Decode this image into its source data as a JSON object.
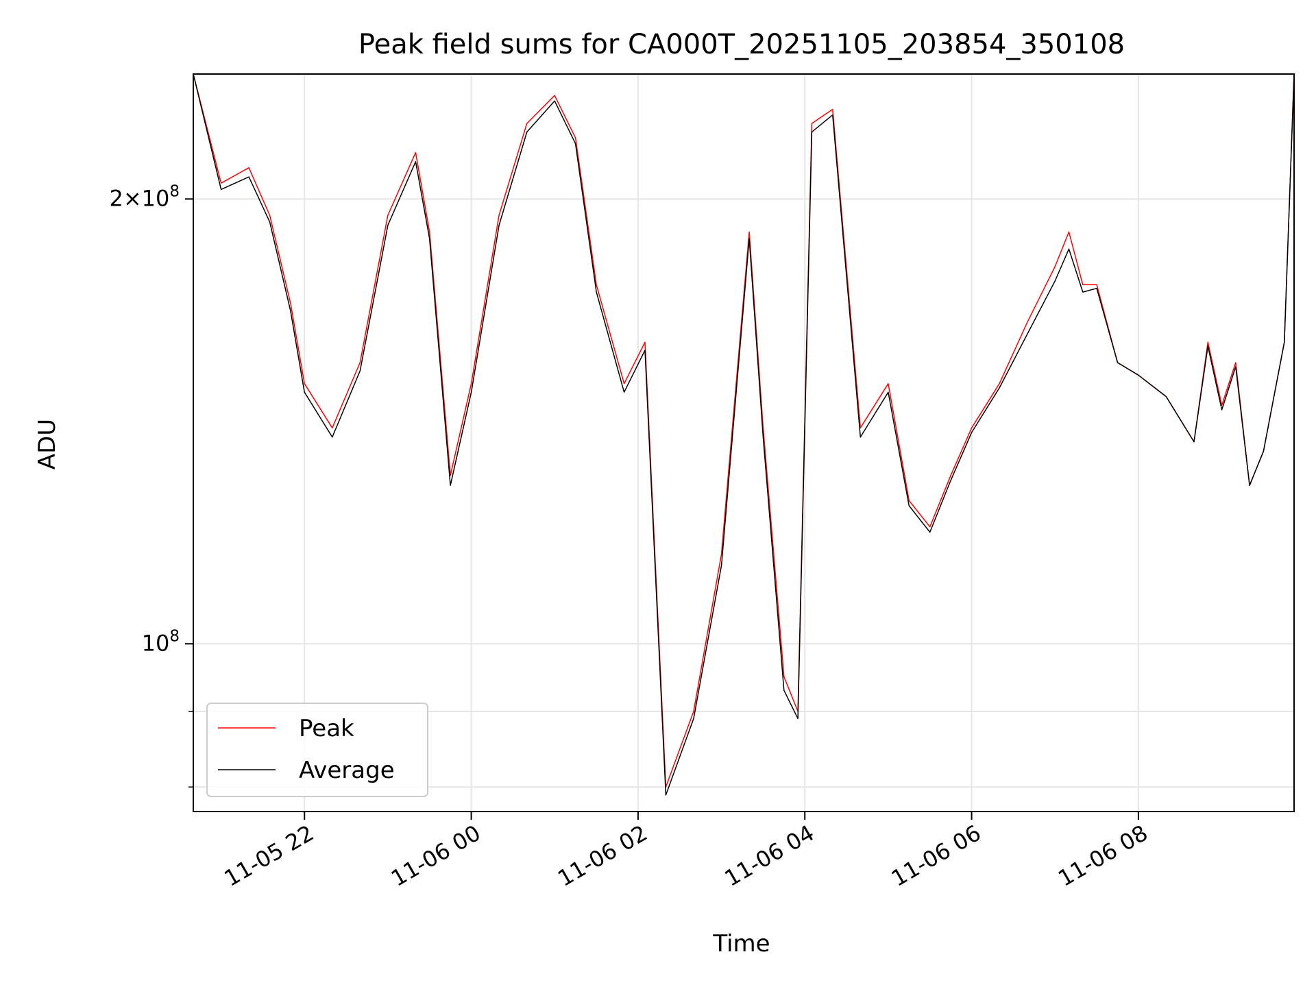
{
  "chart_data": {
    "type": "line",
    "title": "Peak field sums for CA000T_20251105_203854_350108",
    "xlabel": "Time",
    "ylabel": "ADU",
    "x_axis": {
      "kind": "time",
      "range": [
        "2025-11-05 20:40",
        "2025-11-06 09:52"
      ],
      "ticks": [
        "2025-11-05 22:00",
        "2025-11-06 00:00",
        "2025-11-06 02:00",
        "2025-11-06 04:00",
        "2025-11-06 06:00",
        "2025-11-06 08:00"
      ],
      "tick_labels": [
        "11-05 22",
        "11-06 00",
        "11-06 02",
        "11-06 04",
        "11-06 06",
        "11-06 08"
      ]
    },
    "y_axis": {
      "scale": "log",
      "range": [
        77000000,
        243000000
      ],
      "major_ticks": [
        100000000,
        200000000
      ],
      "major_tick_labels": [
        "10^8",
        "2×10^8"
      ],
      "minor_ticks": [
        80000000,
        90000000
      ]
    },
    "grid": true,
    "legend": {
      "placement": "lower-left",
      "entries": [
        "Peak",
        "Average"
      ]
    },
    "colors": {
      "Peak": "#ff0000",
      "Average": "#000000"
    },
    "series": [
      {
        "name": "Peak",
        "x": [
          "2025-11-05 20:40",
          "2025-11-05 21:00",
          "2025-11-05 21:20",
          "2025-11-05 21:35",
          "2025-11-05 21:50",
          "2025-11-05 22:00",
          "2025-11-05 22:20",
          "2025-11-05 22:40",
          "2025-11-05 23:00",
          "2025-11-05 23:20",
          "2025-11-05 23:30",
          "2025-11-05 23:45",
          "2025-11-06 00:00",
          "2025-11-06 00:20",
          "2025-11-06 00:40",
          "2025-11-06 01:00",
          "2025-11-06 01:15",
          "2025-11-06 01:30",
          "2025-11-06 01:50",
          "2025-11-06 02:05",
          "2025-11-06 02:20",
          "2025-11-06 02:40",
          "2025-11-06 03:00",
          "2025-11-06 03:20",
          "2025-11-06 03:30",
          "2025-11-06 03:45",
          "2025-11-06 03:55",
          "2025-11-06 04:05",
          "2025-11-06 04:20",
          "2025-11-06 04:40",
          "2025-11-06 05:00",
          "2025-11-06 05:15",
          "2025-11-06 05:30",
          "2025-11-06 05:45",
          "2025-11-06 06:00",
          "2025-11-06 06:20",
          "2025-11-06 06:40",
          "2025-11-06 07:00",
          "2025-11-06 07:10",
          "2025-11-06 07:20",
          "2025-11-06 07:30",
          "2025-11-06 07:45",
          "2025-11-06 08:00",
          "2025-11-06 08:20",
          "2025-11-06 08:40",
          "2025-11-06 08:50",
          "2025-11-06 09:00",
          "2025-11-06 09:10",
          "2025-11-06 09:20",
          "2025-11-06 09:30",
          "2025-11-06 09:45",
          "2025-11-06 09:52"
        ],
        "values": [
          243000000,
          205000000,
          210000000,
          195000000,
          170000000,
          150000000,
          140000000,
          155000000,
          195000000,
          215000000,
          190000000,
          130000000,
          150000000,
          195000000,
          225000000,
          235000000,
          220000000,
          175000000,
          150000000,
          160000000,
          80000000,
          90000000,
          115000000,
          190000000,
          140000000,
          95000000,
          90000000,
          225000000,
          230000000,
          140000000,
          150000000,
          125000000,
          120000000,
          130000000,
          140000000,
          150000000,
          165000000,
          180000000,
          190000000,
          175000000,
          175000000,
          155000000,
          152000000,
          147000000,
          137000000,
          160000000,
          145000000,
          155000000,
          128000000,
          135000000,
          160000000,
          243000000
        ]
      },
      {
        "name": "Average",
        "x": [
          "2025-11-05 20:40",
          "2025-11-05 21:00",
          "2025-11-05 21:20",
          "2025-11-05 21:35",
          "2025-11-05 21:50",
          "2025-11-05 22:00",
          "2025-11-05 22:20",
          "2025-11-05 22:40",
          "2025-11-05 23:00",
          "2025-11-05 23:20",
          "2025-11-05 23:30",
          "2025-11-05 23:45",
          "2025-11-06 00:00",
          "2025-11-06 00:20",
          "2025-11-06 00:40",
          "2025-11-06 01:00",
          "2025-11-06 01:15",
          "2025-11-06 01:30",
          "2025-11-06 01:50",
          "2025-11-06 02:05",
          "2025-11-06 02:20",
          "2025-11-06 02:40",
          "2025-11-06 03:00",
          "2025-11-06 03:20",
          "2025-11-06 03:30",
          "2025-11-06 03:45",
          "2025-11-06 03:55",
          "2025-11-06 04:05",
          "2025-11-06 04:20",
          "2025-11-06 04:40",
          "2025-11-06 05:00",
          "2025-11-06 05:15",
          "2025-11-06 05:30",
          "2025-11-06 05:45",
          "2025-11-06 06:00",
          "2025-11-06 06:20",
          "2025-11-06 06:40",
          "2025-11-06 07:00",
          "2025-11-06 07:10",
          "2025-11-06 07:20",
          "2025-11-06 07:30",
          "2025-11-06 07:45",
          "2025-11-06 08:00",
          "2025-11-06 08:20",
          "2025-11-06 08:40",
          "2025-11-06 08:50",
          "2025-11-06 09:00",
          "2025-11-06 09:10",
          "2025-11-06 09:20",
          "2025-11-06 09:30",
          "2025-11-06 09:45",
          "2025-11-06 09:52"
        ],
        "values": [
          243000000,
          203000000,
          207000000,
          193000000,
          168000000,
          148000000,
          138000000,
          153000000,
          192000000,
          212000000,
          188000000,
          128000000,
          148000000,
          192000000,
          222000000,
          233000000,
          218000000,
          173000000,
          148000000,
          158000000,
          79000000,
          89000000,
          113000000,
          188000000,
          138000000,
          93000000,
          89000000,
          222000000,
          228000000,
          138000000,
          148000000,
          124000000,
          119000000,
          129000000,
          139000000,
          149000000,
          162000000,
          176000000,
          185000000,
          173000000,
          174000000,
          155000000,
          152000000,
          147000000,
          137000000,
          159000000,
          144000000,
          154000000,
          128000000,
          135000000,
          160000000,
          243000000
        ]
      }
    ]
  }
}
